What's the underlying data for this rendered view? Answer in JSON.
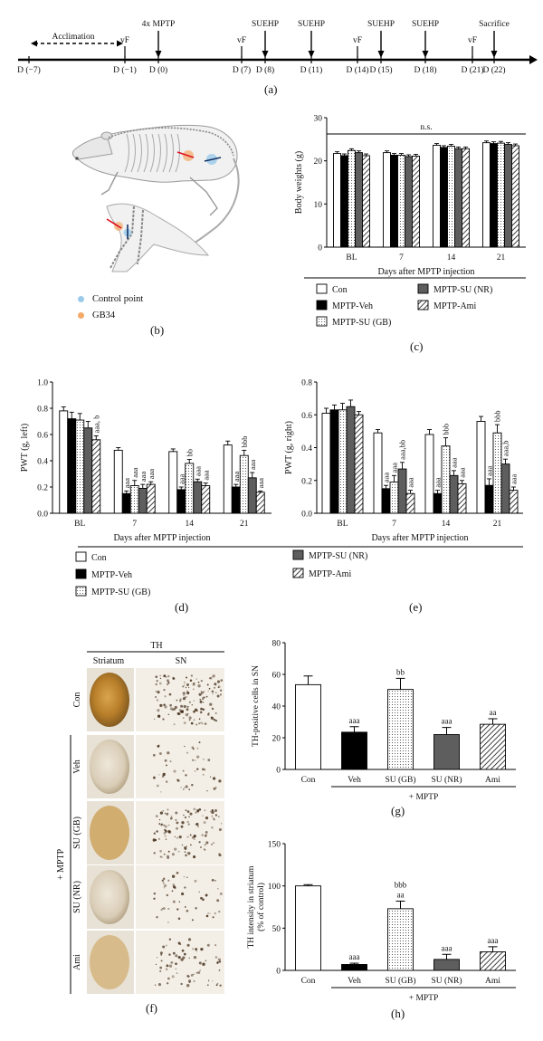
{
  "timeline": {
    "acclimation": "Acclimation",
    "events": [
      {
        "day": "D (−7)",
        "top": ""
      },
      {
        "day": "D (−1)",
        "top": "vF"
      },
      {
        "day": "D (0)",
        "top": "4x MPTP"
      },
      {
        "day": "D (7)",
        "top": "vF"
      },
      {
        "day": "D (8)",
        "top": "SUEHP"
      },
      {
        "day": "D (11)",
        "top": "SUEHP"
      },
      {
        "day": "D (14)",
        "top": "vF"
      },
      {
        "day": "D (15)",
        "top": "SUEHP"
      },
      {
        "day": "D (18)",
        "top": "SUEHP"
      },
      {
        "day": "D (21)",
        "top": "vF"
      },
      {
        "day": "D (22)",
        "top": "Sacrifice"
      }
    ],
    "label": "(a)"
  },
  "rat": {
    "legend": [
      {
        "label": "Control point",
        "color": "#8fc3e8"
      },
      {
        "label": "GB34",
        "color": "#f2a05a"
      }
    ],
    "label": "(b)"
  },
  "legend_groups": {
    "con": "Con",
    "veh": "MPTP-Veh",
    "gb": "MPTP-SU (GB)",
    "nr": "MPTP-SU (NR)",
    "ami": "MPTP-Ami"
  },
  "panel_c": {
    "label": "(c)",
    "ns": "n.s."
  },
  "panel_d": {
    "label": "(d)"
  },
  "panel_e": {
    "label": "(e)"
  },
  "panel_f": {
    "label": "(f)",
    "th": "TH",
    "striatum": "Striatum",
    "sn": "SN",
    "rows": [
      "Con",
      "Veh",
      "SU (GB)",
      "SU (NR)",
      "Ami"
    ],
    "mptp": "+ MPTP"
  },
  "panel_g": {
    "label": "(g)",
    "mptp": "+ MPTP"
  },
  "panel_h": {
    "label": "(h)",
    "mptp": "+ MPTP"
  },
  "chart_data": [
    {
      "id": "c",
      "type": "bar",
      "ylabel": "Body weights (g)",
      "xlabel": "Days after MPTP injection",
      "categories": [
        "BL",
        "7",
        "14",
        "21"
      ],
      "ylim": [
        0,
        30
      ],
      "yticks": [
        0,
        10,
        20,
        30
      ],
      "series": [
        {
          "name": "Con",
          "values": [
            21.7,
            21.9,
            23.6,
            24.2
          ],
          "err": [
            0.4,
            0.4,
            0.4,
            0.4
          ]
        },
        {
          "name": "MPTP-Veh",
          "values": [
            21.2,
            21.3,
            23.1,
            24.0
          ],
          "err": [
            0.4,
            0.4,
            0.4,
            0.4
          ]
        },
        {
          "name": "MPTP-SU (GB)",
          "values": [
            22.4,
            21.3,
            23.4,
            24.1
          ],
          "err": [
            0.4,
            0.4,
            0.4,
            0.4
          ]
        },
        {
          "name": "MPTP-SU (NR)",
          "values": [
            21.9,
            21.0,
            22.8,
            23.8
          ],
          "err": [
            0.4,
            0.4,
            0.4,
            0.4
          ]
        },
        {
          "name": "MPTP-Ami",
          "values": [
            21.2,
            21.1,
            22.8,
            23.5
          ],
          "err": [
            0.4,
            0.4,
            0.4,
            0.4
          ]
        }
      ],
      "annotations": []
    },
    {
      "id": "d",
      "type": "bar",
      "ylabel": "PWT (g, left)",
      "xlabel": "Days after MPTP injection",
      "categories": [
        "BL",
        "7",
        "14",
        "21"
      ],
      "ylim": [
        0,
        1.0
      ],
      "yticks": [
        0.0,
        0.2,
        0.4,
        0.6,
        0.8,
        1.0
      ],
      "series": [
        {
          "name": "Con",
          "values": [
            0.78,
            0.48,
            0.47,
            0.52
          ],
          "err": [
            0.03,
            0.02,
            0.02,
            0.03
          ]
        },
        {
          "name": "MPTP-Veh",
          "values": [
            0.72,
            0.15,
            0.18,
            0.2
          ],
          "err": [
            0.05,
            0.02,
            0.02,
            0.02
          ]
        },
        {
          "name": "MPTP-SU (GB)",
          "values": [
            0.71,
            0.21,
            0.38,
            0.44
          ],
          "err": [
            0.05,
            0.04,
            0.03,
            0.04
          ]
        },
        {
          "name": "MPTP-SU (NR)",
          "values": [
            0.65,
            0.19,
            0.24,
            0.27
          ],
          "err": [
            0.05,
            0.03,
            0.02,
            0.04
          ]
        },
        {
          "name": "MPTP-Ami",
          "values": [
            0.56,
            0.22,
            0.21,
            0.16
          ],
          "err": [
            0.03,
            0.02,
            0.02,
            0.01
          ]
        }
      ],
      "annotations": [
        {
          "group": 0,
          "series": 4,
          "text": "aaa, b"
        },
        {
          "group": 1,
          "series": 1,
          "text": "aaa"
        },
        {
          "group": 1,
          "series": 2,
          "text": "aaa"
        },
        {
          "group": 1,
          "series": 3,
          "text": "aaa"
        },
        {
          "group": 1,
          "series": 4,
          "text": "aaa"
        },
        {
          "group": 2,
          "series": 1,
          "text": "aaa"
        },
        {
          "group": 2,
          "series": 2,
          "text": "bb"
        },
        {
          "group": 2,
          "series": 3,
          "text": "aaa"
        },
        {
          "group": 2,
          "series": 4,
          "text": "aaa"
        },
        {
          "group": 3,
          "series": 1,
          "text": "aaa"
        },
        {
          "group": 3,
          "series": 2,
          "text": "bbb"
        },
        {
          "group": 3,
          "series": 3,
          "text": "aaa"
        },
        {
          "group": 3,
          "series": 4,
          "text": "aaa"
        }
      ]
    },
    {
      "id": "e",
      "type": "bar",
      "ylabel": "PWT (g, right)",
      "xlabel": "Days after MPTP injection",
      "categories": [
        "BL",
        "7",
        "14",
        "21"
      ],
      "ylim": [
        0,
        0.8
      ],
      "yticks": [
        0.0,
        0.2,
        0.4,
        0.6,
        0.8
      ],
      "series": [
        {
          "name": "Con",
          "values": [
            0.61,
            0.49,
            0.48,
            0.56
          ],
          "err": [
            0.03,
            0.02,
            0.03,
            0.03
          ]
        },
        {
          "name": "MPTP-Veh",
          "values": [
            0.63,
            0.15,
            0.12,
            0.17
          ],
          "err": [
            0.03,
            0.02,
            0.02,
            0.04
          ]
        },
        {
          "name": "MPTP-SU (GB)",
          "values": [
            0.63,
            0.19,
            0.41,
            0.49
          ],
          "err": [
            0.04,
            0.04,
            0.05,
            0.05
          ]
        },
        {
          "name": "MPTP-SU (NR)",
          "values": [
            0.65,
            0.27,
            0.23,
            0.3
          ],
          "err": [
            0.04,
            0.04,
            0.03,
            0.03
          ]
        },
        {
          "name": "MPTP-Ami",
          "values": [
            0.6,
            0.12,
            0.18,
            0.14
          ],
          "err": [
            0.02,
            0.02,
            0.02,
            0.02
          ]
        }
      ],
      "annotations": [
        {
          "group": 1,
          "series": 1,
          "text": "aaa"
        },
        {
          "group": 1,
          "series": 2,
          "text": "aaa"
        },
        {
          "group": 1,
          "series": 3,
          "text": "aaa,bb"
        },
        {
          "group": 1,
          "series": 4,
          "text": "aaa"
        },
        {
          "group": 2,
          "series": 1,
          "text": "aaa"
        },
        {
          "group": 2,
          "series": 2,
          "text": "bbb"
        },
        {
          "group": 2,
          "series": 3,
          "text": "aaa"
        },
        {
          "group": 2,
          "series": 4,
          "text": "aaa"
        },
        {
          "group": 3,
          "series": 1,
          "text": "aaa"
        },
        {
          "group": 3,
          "series": 2,
          "text": "bbb"
        },
        {
          "group": 3,
          "series": 3,
          "text": "aaa,b"
        },
        {
          "group": 3,
          "series": 4,
          "text": "aaa"
        }
      ]
    },
    {
      "id": "g",
      "type": "bar",
      "ylabel": "TH-positive cells in SN",
      "categories": [
        "Con",
        "Veh",
        "SU (GB)",
        "SU (NR)",
        "Ami"
      ],
      "values": [
        53.5,
        23.5,
        50.5,
        22.0,
        28.5
      ],
      "err": [
        5.5,
        3.5,
        7.0,
        4.5,
        3.5
      ],
      "ylim": [
        0,
        80
      ],
      "yticks": [
        0,
        20,
        40,
        60,
        80
      ],
      "annotations": [
        "",
        "aaa",
        "bb",
        "aaa",
        "aa"
      ]
    },
    {
      "id": "h",
      "type": "bar",
      "ylabel": "TH intensity in striatum (% of control)",
      "categories": [
        "Con",
        "Veh",
        "SU (GB)",
        "SU (NR)",
        "Ami"
      ],
      "values": [
        100,
        7,
        73,
        13,
        22
      ],
      "err": [
        1.5,
        1.5,
        9.0,
        6.0,
        6.0
      ],
      "ylim": [
        0,
        150
      ],
      "yticks": [
        0,
        50,
        100,
        150
      ],
      "annotations": [
        "",
        "aaa",
        "bbb\naa",
        "aaa",
        "aaa"
      ]
    }
  ]
}
